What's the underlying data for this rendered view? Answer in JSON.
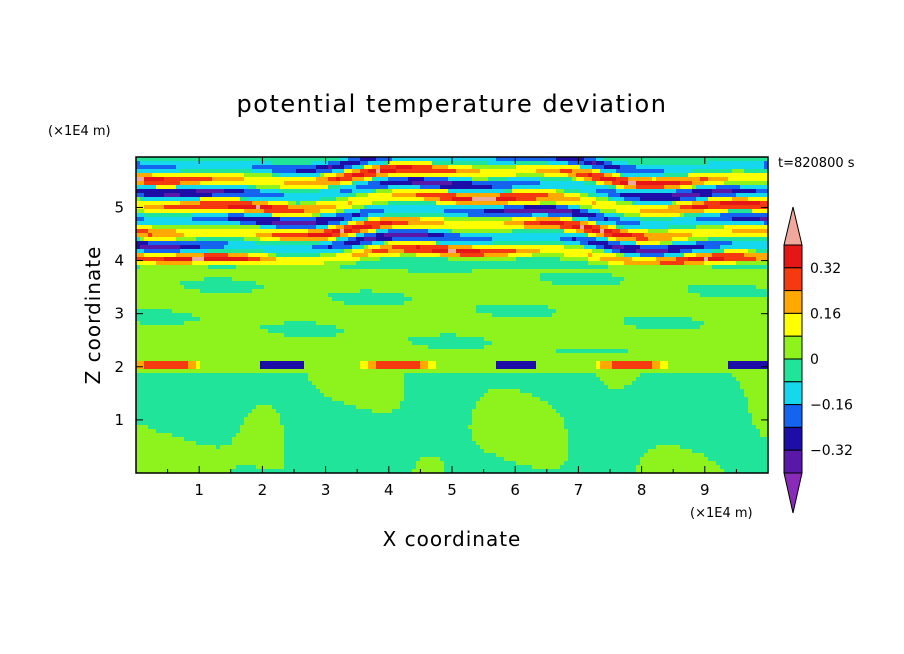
{
  "chart_data": {
    "type": "heatmap",
    "title": "potential temperature deviation",
    "xlabel": "X coordinate",
    "ylabel": "Z coordinate",
    "x_unit": "(×1E4 m)",
    "y_unit": "(×1E4 m)",
    "time_label": "t=820800 s",
    "xlim": [
      0,
      10
    ],
    "ylim": [
      0,
      5.95
    ],
    "x_ticks": [
      1,
      2,
      3,
      4,
      5,
      6,
      7,
      8,
      9
    ],
    "y_ticks": [
      1,
      2,
      3,
      4,
      5
    ],
    "colorbar": {
      "levels": [
        -0.4,
        -0.32,
        -0.24,
        -0.16,
        -0.08,
        0,
        0.08,
        0.16,
        0.24,
        0.32,
        0.4
      ],
      "colors": [
        "#8a2ab8",
        "#5a18a8",
        "#1c0ea6",
        "#1464f0",
        "#16d8ec",
        "#20e49a",
        "#8ef21c",
        "#ffff00",
        "#ffa800",
        "#f53a10",
        "#e51616",
        "#f0a89c"
      ],
      "tick_labels": [
        "0.32",
        "0.16",
        "0",
        "−0.16",
        "−0.32"
      ],
      "tick_values": [
        0.32,
        0.16,
        0,
        -0.16,
        -0.32
      ]
    },
    "fields": {
      "background_value": 0.02,
      "lower_region": {
        "z_range": [
          0,
          1.9
        ],
        "description_values": {
          "weak_positive": 0.03,
          "weak_negative": -0.03
        }
      },
      "layer_at_z": 2.05,
      "layer_values": {
        "positive": 0.25,
        "negative": -0.33
      },
      "upper_region": {
        "z_range": [
          3.9,
          5.95
        ],
        "band_centers_z": [
          4.1,
          4.35,
          4.6,
          4.85,
          5.1,
          5.35,
          5.6,
          5.85
        ],
        "band_values": [
          0.38,
          -0.35,
          0.38,
          -0.36,
          0.38,
          -0.36,
          0.38,
          -0.3
        ]
      }
    }
  }
}
